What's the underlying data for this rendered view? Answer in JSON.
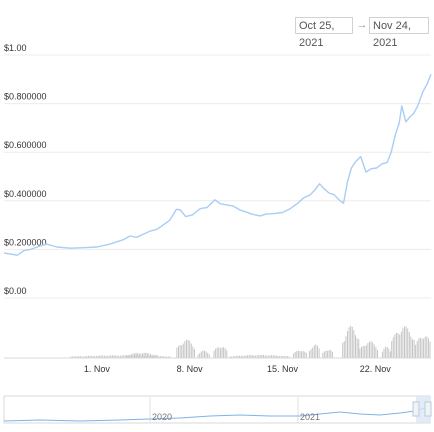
{
  "date_range": {
    "from": "Oct 25, 2021",
    "to": "Nov 24, 2021",
    "arrow": "→"
  },
  "colors": {
    "line": "#a9cdf5",
    "volume": "#c5c5c5",
    "grid": "#ececec",
    "navigator_line": "#7fb1ea",
    "navigator_handle": "#b7cbe6"
  },
  "chart_data": {
    "type": "line",
    "ylim": [
      0,
      1
    ],
    "yticks": [
      {
        "value": 0,
        "label": "$0.00"
      },
      {
        "value": 0.2,
        "label": "$0.200000"
      },
      {
        "value": 0.4,
        "label": "$0.400000"
      },
      {
        "value": 0.6,
        "label": "$0.600000"
      },
      {
        "value": 0.8,
        "label": "$0.800000"
      },
      {
        "value": 1.0,
        "label": "$1.00"
      }
    ],
    "xticks": [
      {
        "day": 7,
        "label": "1. Nov"
      },
      {
        "day": 14,
        "label": "8. Nov"
      },
      {
        "day": 21,
        "label": "15. Nov"
      },
      {
        "day": 28,
        "label": "22. Nov"
      }
    ],
    "x_range_days": [
      0,
      31
    ],
    "series": [
      {
        "values": [
          [
            0.0,
            0.185
          ],
          [
            0.6,
            0.18
          ],
          [
            1.0,
            0.176
          ],
          [
            1.5,
            0.195
          ],
          [
            2.0,
            0.2
          ],
          [
            2.6,
            0.212
          ],
          [
            3.2,
            0.222
          ],
          [
            4.0,
            0.21
          ],
          [
            5.0,
            0.205
          ],
          [
            6.0,
            0.207
          ],
          [
            7.0,
            0.21
          ],
          [
            8.0,
            0.222
          ],
          [
            9.0,
            0.24
          ],
          [
            9.5,
            0.255
          ],
          [
            10.0,
            0.25
          ],
          [
            11.0,
            0.275
          ],
          [
            11.5,
            0.282
          ],
          [
            12.0,
            0.3
          ],
          [
            12.5,
            0.32
          ],
          [
            13.0,
            0.365
          ],
          [
            13.3,
            0.362
          ],
          [
            13.7,
            0.335
          ],
          [
            14.2,
            0.342
          ],
          [
            14.8,
            0.368
          ],
          [
            15.3,
            0.372
          ],
          [
            15.6,
            0.388
          ],
          [
            15.9,
            0.404
          ],
          [
            16.3,
            0.388
          ],
          [
            16.8,
            0.383
          ],
          [
            17.3,
            0.378
          ],
          [
            17.8,
            0.362
          ],
          [
            18.2,
            0.355
          ],
          [
            18.7,
            0.345
          ],
          [
            19.3,
            0.338
          ],
          [
            19.8,
            0.346
          ],
          [
            20.3,
            0.347
          ],
          [
            21.0,
            0.352
          ],
          [
            21.6,
            0.368
          ],
          [
            22.2,
            0.392
          ],
          [
            22.6,
            0.412
          ],
          [
            23.1,
            0.425
          ],
          [
            23.5,
            0.448
          ],
          [
            23.8,
            0.47
          ],
          [
            24.1,
            0.452
          ],
          [
            24.5,
            0.432
          ],
          [
            24.9,
            0.425
          ],
          [
            25.3,
            0.402
          ],
          [
            25.6,
            0.39
          ],
          [
            25.9,
            0.478
          ],
          [
            26.2,
            0.535
          ],
          [
            26.5,
            0.56
          ],
          [
            26.9,
            0.582
          ],
          [
            27.3,
            0.518
          ],
          [
            27.7,
            0.532
          ],
          [
            28.1,
            0.535
          ],
          [
            28.5,
            0.552
          ],
          [
            28.9,
            0.558
          ],
          [
            29.2,
            0.6
          ],
          [
            29.5,
            0.67
          ],
          [
            29.8,
            0.72
          ],
          [
            30.0,
            0.79
          ],
          [
            30.3,
            0.725
          ],
          [
            30.6,
            0.745
          ],
          [
            30.9,
            0.76
          ],
          [
            31.2,
            0.79
          ],
          [
            31.6,
            0.85
          ],
          [
            31.9,
            0.88
          ],
          [
            32.2,
            0.92
          ]
        ]
      }
    ],
    "volume": [
      {
        "from": 5.0,
        "to": 12.5,
        "level": 0.08
      },
      {
        "from": 9.2,
        "to": 11.5,
        "level": 0.16
      },
      {
        "from": 13.0,
        "to": 14.4,
        "level": 0.55
      },
      {
        "from": 14.6,
        "to": 15.5,
        "level": 0.22
      },
      {
        "from": 15.8,
        "to": 16.8,
        "level": 0.38
      },
      {
        "from": 17.0,
        "to": 21.5,
        "level": 0.09
      },
      {
        "from": 21.8,
        "to": 22.8,
        "level": 0.25
      },
      {
        "from": 23.0,
        "to": 23.8,
        "level": 0.42
      },
      {
        "from": 24.0,
        "to": 24.8,
        "level": 0.28
      },
      {
        "from": 25.5,
        "to": 26.8,
        "level": 0.95
      },
      {
        "from": 26.8,
        "to": 28.2,
        "level": 0.5
      },
      {
        "from": 28.5,
        "to": 29.2,
        "level": 0.35
      },
      {
        "from": 29.2,
        "to": 31.0,
        "level": 0.95
      },
      {
        "from": 31.0,
        "to": 32.2,
        "level": 0.72
      }
    ],
    "navigator": {
      "labels": [
        "2020",
        "2021"
      ]
    }
  }
}
